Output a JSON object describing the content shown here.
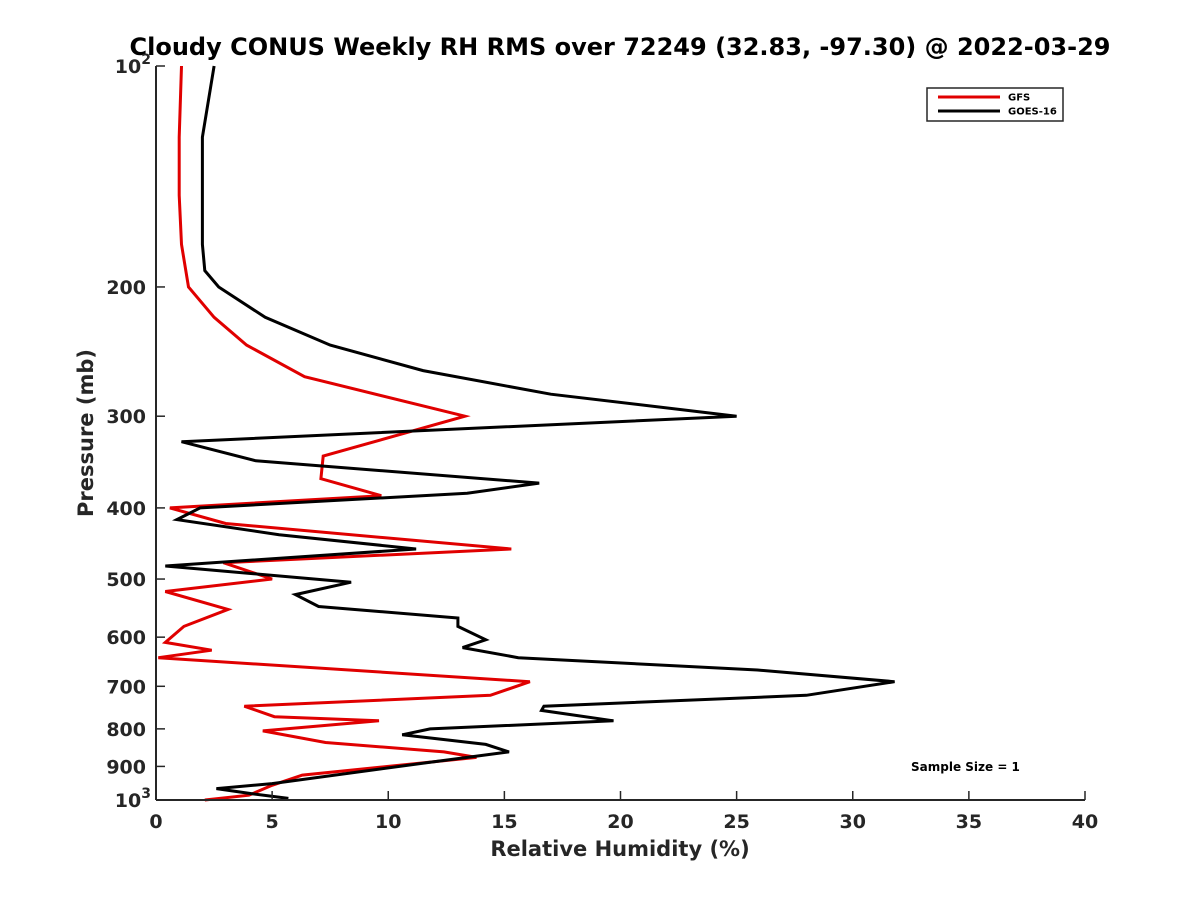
{
  "chart_data": {
    "type": "line",
    "title": "Cloudy CONUS Weekly RH RMS over 72249 (32.83, -97.30) @ 2022-03-29",
    "xlabel": "Relative Humidity (%)",
    "ylabel": "Pressure (mb)",
    "xlim": [
      0,
      40
    ],
    "ylim": [
      100,
      1000
    ],
    "y_scale": "log",
    "y_reversed": true,
    "x_ticks": [
      "0",
      "5",
      "10",
      "15",
      "20",
      "25",
      "30",
      "35",
      "40"
    ],
    "y_ticks": [
      {
        "value": 100,
        "base": "10",
        "exp": "2"
      },
      {
        "value": 200,
        "label": "200"
      },
      {
        "value": 300,
        "label": "300"
      },
      {
        "value": 400,
        "label": "400"
      },
      {
        "value": 500,
        "label": "500"
      },
      {
        "value": 600,
        "label": "600"
      },
      {
        "value": 700,
        "label": "700"
      },
      {
        "value": 800,
        "label": "800"
      },
      {
        "value": 900,
        "label": "900"
      },
      {
        "value": 1000,
        "base": "10",
        "exp": "3"
      }
    ],
    "grid": false,
    "legend_position": "top-right",
    "annotation": "Sample Size = 1",
    "series": [
      {
        "name": "GFS",
        "color": "#e00000",
        "points": [
          [
            1.1,
            100
          ],
          [
            1.0,
            125
          ],
          [
            1.0,
            150
          ],
          [
            1.1,
            175
          ],
          [
            1.4,
            200
          ],
          [
            2.5,
            220
          ],
          [
            3.9,
            240
          ],
          [
            6.4,
            265
          ],
          [
            13.3,
            300
          ],
          [
            7.2,
            340
          ],
          [
            7.1,
            365
          ],
          [
            9.7,
            385
          ],
          [
            0.6,
            400
          ],
          [
            3.0,
            420
          ],
          [
            15.3,
            455
          ],
          [
            2.9,
            475
          ],
          [
            5.0,
            500
          ],
          [
            0.4,
            520
          ],
          [
            3.1,
            550
          ],
          [
            1.2,
            580
          ],
          [
            0.4,
            610
          ],
          [
            2.4,
            625
          ],
          [
            0.1,
            640
          ],
          [
            16.1,
            690
          ],
          [
            14.4,
            720
          ],
          [
            3.8,
            745
          ],
          [
            5.1,
            770
          ],
          [
            9.6,
            780
          ],
          [
            4.6,
            805
          ],
          [
            7.3,
            835
          ],
          [
            12.4,
            860
          ],
          [
            13.8,
            875
          ],
          [
            10.0,
            900
          ],
          [
            6.3,
            925
          ],
          [
            5.0,
            955
          ],
          [
            4.0,
            985
          ],
          [
            2.1,
            1000
          ]
        ]
      },
      {
        "name": "GOES-16",
        "color": "#000000",
        "points": [
          [
            2.5,
            100
          ],
          [
            2.0,
            125
          ],
          [
            2.0,
            150
          ],
          [
            2.0,
            175
          ],
          [
            2.1,
            190
          ],
          [
            2.7,
            200
          ],
          [
            4.7,
            220
          ],
          [
            7.5,
            240
          ],
          [
            11.5,
            260
          ],
          [
            17.0,
            280
          ],
          [
            25.0,
            300
          ],
          [
            1.1,
            325
          ],
          [
            4.3,
            345
          ],
          [
            16.5,
            370
          ],
          [
            13.4,
            382
          ],
          [
            1.9,
            400
          ],
          [
            0.9,
            415
          ],
          [
            5.3,
            435
          ],
          [
            11.2,
            455
          ],
          [
            0.4,
            480
          ],
          [
            8.4,
            505
          ],
          [
            6.0,
            525
          ],
          [
            7.0,
            545
          ],
          [
            13.0,
            565
          ],
          [
            13.0,
            580
          ],
          [
            14.2,
            605
          ],
          [
            13.2,
            620
          ],
          [
            15.6,
            640
          ],
          [
            25.9,
            665
          ],
          [
            31.8,
            690
          ],
          [
            28.0,
            720
          ],
          [
            16.7,
            745
          ],
          [
            16.6,
            755
          ],
          [
            19.7,
            780
          ],
          [
            11.8,
            800
          ],
          [
            10.6,
            815
          ],
          [
            14.2,
            840
          ],
          [
            15.2,
            860
          ],
          [
            11.6,
            890
          ],
          [
            5.0,
            950
          ],
          [
            2.6,
            965
          ],
          [
            4.1,
            980
          ],
          [
            5.7,
            995
          ]
        ]
      }
    ]
  }
}
